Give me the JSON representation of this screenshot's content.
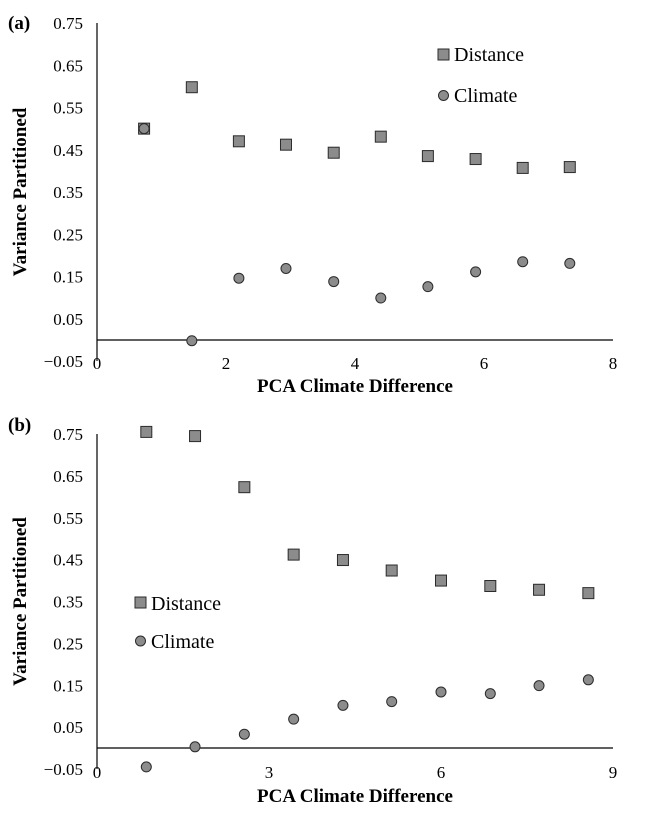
{
  "chart_data": [
    {
      "type": "scatter",
      "panel_label": "(a)",
      "xlabel": "PCA Climate Difference",
      "ylabel": "Variance Partitioned",
      "xlim": [
        0,
        8
      ],
      "ylim": [
        -0.05,
        0.75
      ],
      "x_ticks": [
        "0",
        "2",
        "4",
        "6",
        "8"
      ],
      "y_ticks": [
        "0.75",
        "0.65",
        "0.55",
        "0.45",
        "0.35",
        "0.25",
        "0.15",
        "0.05",
        "−0.05"
      ],
      "legend_position": "top-right",
      "series": [
        {
          "name": "Distance",
          "marker": "square",
          "color": "#8c8c8c",
          "x": [
            0.73,
            1.47,
            2.2,
            2.93,
            3.67,
            4.4,
            5.13,
            5.87,
            6.6,
            7.33
          ],
          "y": [
            0.5,
            0.598,
            0.47,
            0.462,
            0.443,
            0.481,
            0.435,
            0.428,
            0.407,
            0.409
          ]
        },
        {
          "name": "Climate",
          "marker": "circle",
          "color": "#8c8c8c",
          "x": [
            0.73,
            1.47,
            2.2,
            2.93,
            3.67,
            4.4,
            5.13,
            5.87,
            6.6,
            7.33
          ],
          "y": [
            0.5,
            -0.002,
            0.146,
            0.169,
            0.138,
            0.099,
            0.126,
            0.161,
            0.185,
            0.181
          ]
        }
      ]
    },
    {
      "type": "scatter",
      "panel_label": "(b)",
      "xlabel": "PCA Climate Difference",
      "ylabel": "Variance Partitioned",
      "xlim": [
        0,
        9
      ],
      "ylim": [
        -0.05,
        0.75
      ],
      "x_ticks": [
        "0",
        "3",
        "6",
        "9"
      ],
      "y_ticks": [
        "0.75",
        "0.65",
        "0.55",
        "0.45",
        "0.35",
        "0.25",
        "0.15",
        "0.05",
        "−0.05"
      ],
      "legend_position": "center-left",
      "series": [
        {
          "name": "Distance",
          "marker": "square",
          "color": "#8c8c8c",
          "x": [
            0.86,
            1.71,
            2.57,
            3.43,
            4.29,
            5.14,
            6.0,
            6.86,
            7.71,
            8.57
          ],
          "y": [
            0.755,
            0.745,
            0.623,
            0.462,
            0.449,
            0.424,
            0.4,
            0.387,
            0.378,
            0.37
          ]
        },
        {
          "name": "Climate",
          "marker": "circle",
          "color": "#8c8c8c",
          "x": [
            0.86,
            1.71,
            2.57,
            3.43,
            4.29,
            5.14,
            6.0,
            6.86,
            7.71,
            8.57
          ],
          "y": [
            -0.045,
            0.003,
            0.033,
            0.069,
            0.102,
            0.111,
            0.134,
            0.13,
            0.149,
            0.163
          ]
        }
      ]
    }
  ]
}
